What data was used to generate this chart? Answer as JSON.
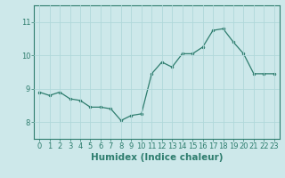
{
  "x": [
    0,
    1,
    2,
    3,
    4,
    5,
    6,
    7,
    8,
    9,
    10,
    11,
    12,
    13,
    14,
    15,
    16,
    17,
    18,
    19,
    20,
    21,
    22,
    23
  ],
  "y": [
    8.9,
    8.8,
    8.9,
    8.7,
    8.65,
    8.45,
    8.45,
    8.4,
    8.05,
    8.2,
    8.25,
    9.45,
    9.8,
    9.65,
    10.05,
    10.05,
    10.25,
    10.75,
    10.8,
    10.4,
    10.05,
    9.45,
    9.45,
    9.45
  ],
  "line_color": "#2e7d6e",
  "marker_color": "#2e7d6e",
  "bg_color": "#cde8ea",
  "grid_color": "#b0d8da",
  "xlabel": "Humidex (Indice chaleur)",
  "ylim": [
    7.5,
    11.5
  ],
  "xlim": [
    -0.5,
    23.5
  ],
  "yticks": [
    8,
    9,
    10,
    11
  ],
  "xticks": [
    0,
    1,
    2,
    3,
    4,
    5,
    6,
    7,
    8,
    9,
    10,
    11,
    12,
    13,
    14,
    15,
    16,
    17,
    18,
    19,
    20,
    21,
    22,
    23
  ],
  "tick_fontsize": 6,
  "xlabel_fontsize": 7.5
}
